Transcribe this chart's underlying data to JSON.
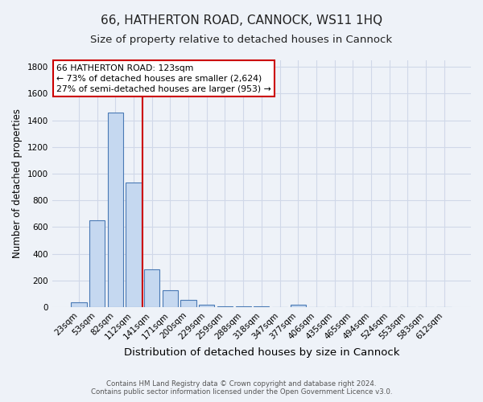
{
  "title": "66, HATHERTON ROAD, CANNOCK, WS11 1HQ",
  "subtitle": "Size of property relative to detached houses in Cannock",
  "xlabel": "Distribution of detached houses by size in Cannock",
  "ylabel": "Number of detached properties",
  "footer_line1": "Contains HM Land Registry data © Crown copyright and database right 2024.",
  "footer_line2": "Contains public sector information licensed under the Open Government Licence v3.0.",
  "bin_labels": [
    "23sqm",
    "53sqm",
    "82sqm",
    "112sqm",
    "141sqm",
    "171sqm",
    "200sqm",
    "229sqm",
    "259sqm",
    "288sqm",
    "318sqm",
    "347sqm",
    "377sqm",
    "406sqm",
    "435sqm",
    "465sqm",
    "494sqm",
    "524sqm",
    "553sqm",
    "583sqm",
    "612sqm"
  ],
  "bar_values": [
    38,
    648,
    1460,
    935,
    283,
    128,
    55,
    18,
    8,
    5,
    3,
    2,
    15,
    0,
    0,
    0,
    0,
    0,
    0,
    0,
    0
  ],
  "bar_color": "#c5d8f0",
  "bar_edgecolor": "#4a7ab5",
  "vline_x": 3.5,
  "vline_color": "#cc0000",
  "annotation_line1": "66 HATHERTON ROAD: 123sqm",
  "annotation_line2": "← 73% of detached houses are smaller (2,624)",
  "annotation_line3": "27% of semi-detached houses are larger (953) →",
  "annotation_box_color": "#ffffff",
  "annotation_box_edgecolor": "#cc0000",
  "annotation_fontsize": 7.8,
  "ylim": [
    0,
    1850
  ],
  "yticks": [
    0,
    200,
    400,
    600,
    800,
    1000,
    1200,
    1400,
    1600,
    1800
  ],
  "grid_color": "#d0d8e8",
  "background_color": "#eef2f8",
  "title_fontsize": 11,
  "subtitle_fontsize": 9.5,
  "xlabel_fontsize": 9.5,
  "ylabel_fontsize": 8.5,
  "tick_fontsize": 7.5
}
